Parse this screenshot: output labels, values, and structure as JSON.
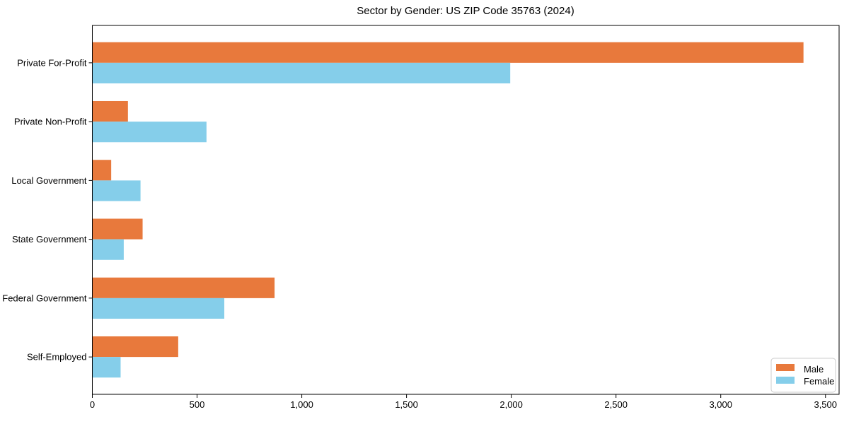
{
  "chart_data": {
    "type": "bar",
    "orientation": "horizontal",
    "title": "Sector by Gender: US ZIP Code 35763 (2024)",
    "categories": [
      "Private For-Profit",
      "Private Non-Profit",
      "Local Government",
      "State Government",
      "Federal Government",
      "Self-Employed"
    ],
    "series": [
      {
        "name": "Male",
        "color": "#e8793c",
        "values": [
          3395,
          170,
          90,
          240,
          870,
          410
        ]
      },
      {
        "name": "Female",
        "color": "#85ceea",
        "values": [
          1995,
          545,
          230,
          150,
          630,
          135
        ]
      }
    ],
    "xlabel": "",
    "ylabel": "",
    "xlim": [
      0,
      3565
    ],
    "x_tick_values": [
      0,
      500,
      1000,
      1500,
      2000,
      2500,
      3000,
      3500
    ],
    "x_tick_labels": [
      "0",
      "500",
      "1,000",
      "1,500",
      "2,000",
      "2,500",
      "3,000",
      "3,500"
    ],
    "grid": false,
    "legend": {
      "position": "lower-right",
      "entries": [
        {
          "label": "Male",
          "color": "#e8793c"
        },
        {
          "label": "Female",
          "color": "#85ceea"
        }
      ]
    },
    "frame_color": "#000000",
    "background_color": "#ffffff"
  }
}
